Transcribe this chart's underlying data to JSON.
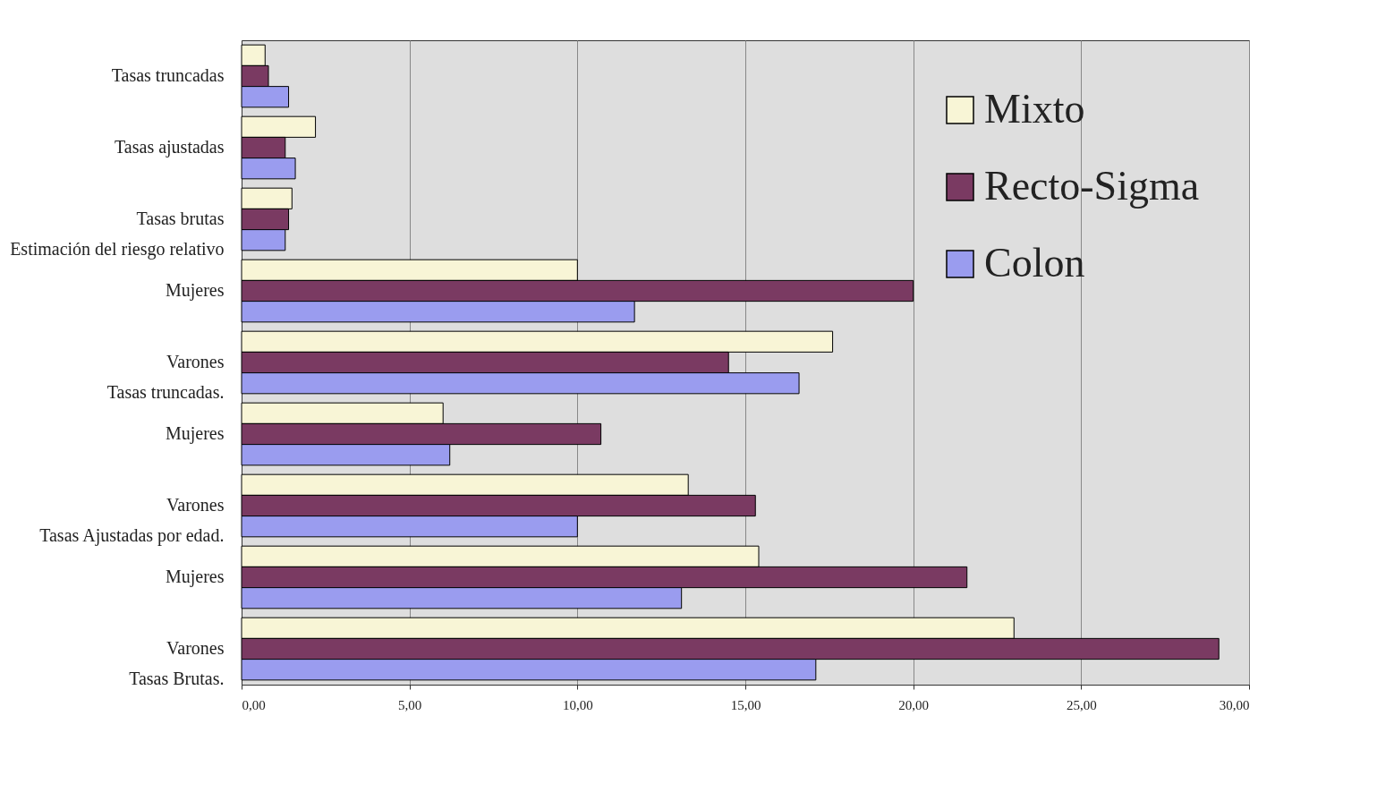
{
  "chart_data": {
    "type": "bar",
    "orientation": "horizontal",
    "categories": [
      "Tasas truncadas",
      "Tasas ajustadas",
      "Tasas brutas\nEstimación del riesgo relativo",
      "Mujeres",
      "Varones\nTasas truncadas.",
      "Mujeres",
      "Varones\nTasas Ajustadas por edad.",
      "Mujeres",
      "Varones\nTasas Brutas."
    ],
    "series": [
      {
        "name": "Mixto",
        "color": "#f8f5d6",
        "values": [
          0.7,
          2.2,
          1.5,
          10.0,
          17.6,
          6.0,
          13.3,
          15.4,
          23.0
        ]
      },
      {
        "name": "Recto-Sigma",
        "color": "#7a3a62",
        "values": [
          0.8,
          1.3,
          1.4,
          20.0,
          14.5,
          10.7,
          15.3,
          21.6,
          29.1
        ]
      },
      {
        "name": "Colon",
        "color": "#9a9cef",
        "values": [
          1.4,
          1.6,
          1.3,
          11.7,
          16.6,
          6.2,
          10.0,
          13.1,
          17.1
        ]
      }
    ],
    "xlim": [
      0,
      30
    ],
    "xticks": [
      {
        "value": 0,
        "label": "0,00"
      },
      {
        "value": 5,
        "label": "5,00"
      },
      {
        "value": 10,
        "label": "10,00"
      },
      {
        "value": 15,
        "label": "15,00"
      },
      {
        "value": 20,
        "label": "20,00"
      },
      {
        "value": 25,
        "label": "25,00"
      },
      {
        "value": 30,
        "label": "30,00"
      }
    ],
    "grid": "x",
    "legend": "top right"
  }
}
